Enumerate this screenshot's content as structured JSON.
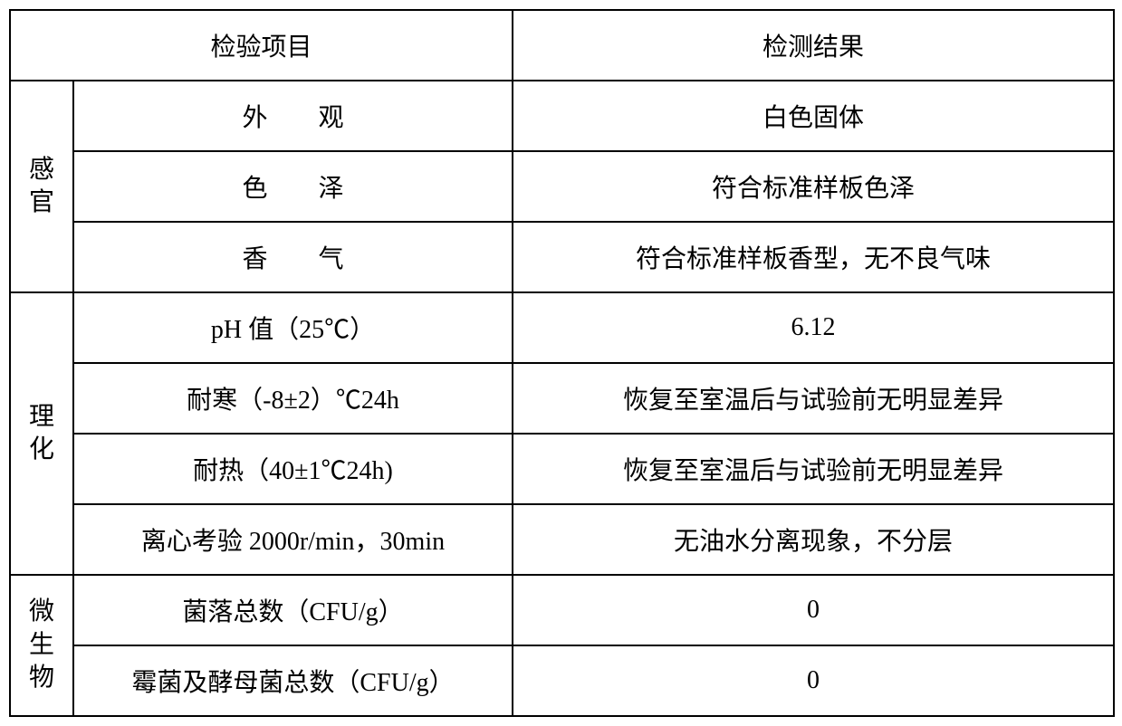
{
  "table": {
    "header": {
      "item": "检验项目",
      "result": "检测结果"
    },
    "groups": [
      {
        "category": "感官",
        "rows": [
          {
            "item": "外　　观",
            "result": "白色固体"
          },
          {
            "item": "色　　泽",
            "result": "符合标准样板色泽"
          },
          {
            "item": "香　　气",
            "result": "符合标准样板香型，无不良气味"
          }
        ]
      },
      {
        "category": "理化",
        "rows": [
          {
            "item": "pH 值（25℃）",
            "result": "6.12"
          },
          {
            "item": "耐寒（-8±2）℃24h",
            "result": "恢复至室温后与试验前无明显差异"
          },
          {
            "item": "耐热（40±1℃24h)",
            "result": "恢复至室温后与试验前无明显差异"
          },
          {
            "item": "离心考验 2000r/min，30min",
            "result": "无油水分离现象，不分层"
          }
        ]
      },
      {
        "category": "微生物",
        "rows": [
          {
            "item": "菌落总数（CFU/g）",
            "result": "0"
          },
          {
            "item": "霉菌及酵母菌总数（CFU/g）",
            "result": "0"
          }
        ]
      }
    ],
    "styles": {
      "border_color": "#000000",
      "background_color": "#ffffff",
      "text_color": "#000000",
      "font_size": 28,
      "border_width": 2
    }
  }
}
